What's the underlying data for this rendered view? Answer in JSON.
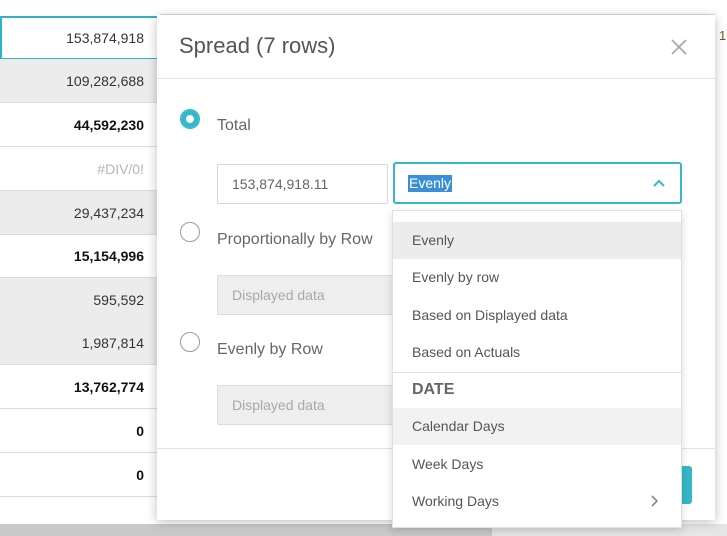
{
  "grid": {
    "rows": [
      {
        "value": "153,874,918",
        "style": "selected"
      },
      {
        "value": "109,282,688",
        "style": "shade"
      },
      {
        "value": "44,592,230",
        "style": "bold"
      },
      {
        "value": "#DIV/0!",
        "style": "muted"
      },
      {
        "value": "29,437,234",
        "style": "shade"
      },
      {
        "value": "15,154,996",
        "style": "bold"
      },
      {
        "value": "595,592",
        "style": "shade"
      },
      {
        "value": "1,987,814",
        "style": "shade"
      },
      {
        "value": "13,762,774",
        "style": "bold"
      },
      {
        "value": "0",
        "style": "bold"
      },
      {
        "value": "0",
        "style": "bold"
      }
    ],
    "right_partial": "1"
  },
  "modal": {
    "title": "Spread (7 rows)",
    "options": {
      "total": {
        "label": "Total",
        "checked": true,
        "amount": "153,874,918.11"
      },
      "proportional": {
        "label": "Proportionally by Row",
        "checked": false,
        "placeholder": "Displayed data"
      },
      "evenly_by_row": {
        "label": "Evenly by Row",
        "checked": false,
        "placeholder": "Displayed data"
      }
    },
    "select": {
      "value": "Evenly"
    }
  },
  "dropdown": {
    "items": [
      "Evenly",
      "Evenly by row",
      "Based on Displayed data",
      "Based on Actuals"
    ],
    "group_label": "DATE",
    "date_items": [
      "Calendar Days",
      "Week Days",
      "Working Days"
    ]
  },
  "colors": {
    "accent": "#35b8c9",
    "selection": "#3b8fd6"
  }
}
